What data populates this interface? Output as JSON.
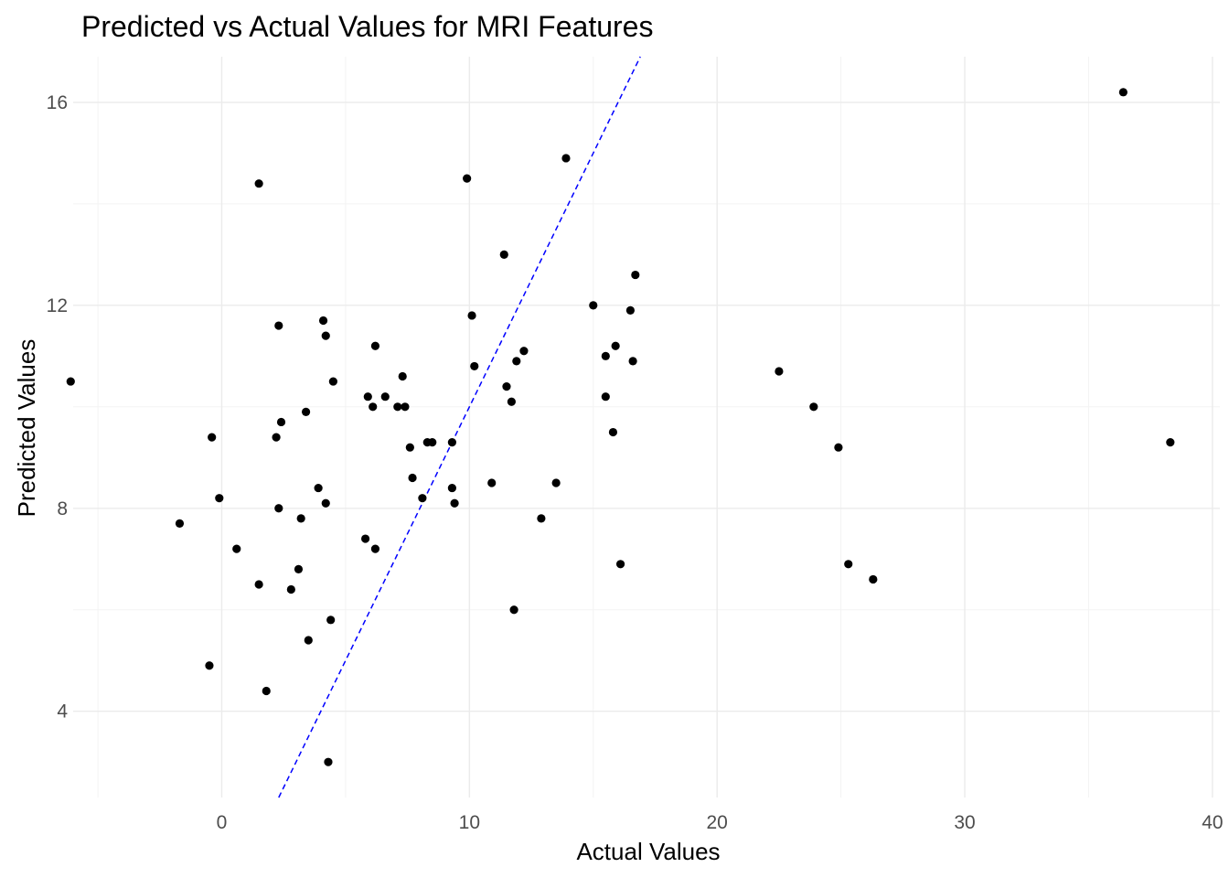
{
  "chart_data": {
    "type": "scatter",
    "title": "Predicted vs Actual Values for MRI Features",
    "xlabel": "Actual Values",
    "ylabel": "Predicted Values",
    "xlim": [
      -6.0,
      40.3
    ],
    "ylim": [
      2.3,
      16.9
    ],
    "x_ticks": [
      0,
      10,
      20,
      30,
      40
    ],
    "x_tick_labels": [
      "0",
      "10",
      "20",
      "30",
      "40"
    ],
    "y_ticks": [
      4,
      8,
      12,
      16
    ],
    "y_tick_labels": [
      "4",
      "8",
      "12",
      "16"
    ],
    "grid": true,
    "reference_line": {
      "type": "y=x",
      "style": "dashed",
      "color": "#0000ff"
    },
    "point_color": "#000000",
    "x": [
      -6.1,
      -1.7,
      -0.5,
      -0.4,
      -0.1,
      0.6,
      1.5,
      1.5,
      1.8,
      2.2,
      2.3,
      2.3,
      2.4,
      2.8,
      3.1,
      3.2,
      3.4,
      3.5,
      3.9,
      4.1,
      4.2,
      4.2,
      4.3,
      4.4,
      4.5,
      5.8,
      5.9,
      6.1,
      6.2,
      6.2,
      6.6,
      7.1,
      7.3,
      7.4,
      7.6,
      7.7,
      8.1,
      8.3,
      8.5,
      9.3,
      9.3,
      9.4,
      9.9,
      10.1,
      10.2,
      10.9,
      11.4,
      11.5,
      11.7,
      11.8,
      11.9,
      12.2,
      12.9,
      13.5,
      13.9,
      15.0,
      15.5,
      15.5,
      15.8,
      15.9,
      16.1,
      16.5,
      16.6,
      16.7,
      22.5,
      23.9,
      24.9,
      25.3,
      26.3,
      36.4,
      38.3
    ],
    "y": [
      10.5,
      7.7,
      4.9,
      9.4,
      8.2,
      7.2,
      6.5,
      14.4,
      4.4,
      9.4,
      8.0,
      11.6,
      9.7,
      6.4,
      6.8,
      7.8,
      9.9,
      5.4,
      8.4,
      11.7,
      8.1,
      11.4,
      3.0,
      5.8,
      10.5,
      7.4,
      10.2,
      10.0,
      7.2,
      11.2,
      10.2,
      10.0,
      10.6,
      10.0,
      9.2,
      8.6,
      8.2,
      9.3,
      9.3,
      9.3,
      8.4,
      8.1,
      14.5,
      11.8,
      10.8,
      8.5,
      13.0,
      10.4,
      10.1,
      6.0,
      10.9,
      11.1,
      7.8,
      8.5,
      14.9,
      12.0,
      10.2,
      11.0,
      9.5,
      11.2,
      6.9,
      11.9,
      10.9,
      12.6,
      10.7,
      10.0,
      9.2,
      6.9,
      6.6,
      16.2,
      9.3
    ]
  }
}
